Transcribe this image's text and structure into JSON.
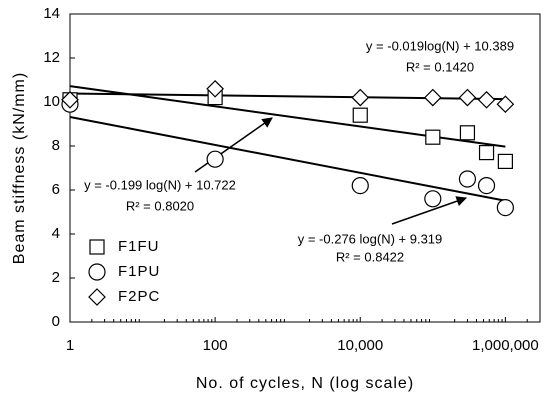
{
  "chart_data": {
    "type": "scatter",
    "xlabel": "No. of cycles, N (log scale)",
    "ylabel": "Beam stiffness (kN/mm)",
    "xscale": "log",
    "xlim": [
      1,
      3000000
    ],
    "ylim": [
      0,
      14
    ],
    "xticks": [
      1,
      100,
      {
        "value": 10000,
        "label": "10,000"
      },
      {
        "value": 1000000,
        "label": "1,000,000"
      }
    ],
    "yticks": [
      0,
      2,
      4,
      6,
      8,
      10,
      12,
      14
    ],
    "legend": "lower left",
    "series": [
      {
        "name": "F1FU",
        "marker": "square",
        "color": "#000000",
        "x": [
          1,
          100,
          10000,
          100000,
          300000,
          550000,
          1000000
        ],
        "values": [
          10.1,
          10.2,
          9.4,
          8.4,
          8.6,
          7.7,
          7.3
        ]
      },
      {
        "name": "F1PU",
        "marker": "circle",
        "color": "#000000",
        "x": [
          1,
          100,
          10000,
          100000,
          300000,
          550000,
          1000000
        ],
        "values": [
          9.9,
          7.4,
          6.2,
          5.6,
          6.5,
          6.2,
          5.2
        ]
      },
      {
        "name": "F2PC",
        "marker": "diamond",
        "color": "#000000",
        "x": [
          1,
          100,
          10000,
          100000,
          300000,
          550000,
          1000000
        ],
        "values": [
          10.1,
          10.6,
          10.2,
          10.2,
          10.2,
          10.1,
          9.9
        ]
      }
    ],
    "trendlines": [
      {
        "x": [
          1,
          1000000
        ],
        "values": [
          10.389,
          10.13
        ]
      },
      {
        "x": [
          1,
          1000000
        ],
        "values": [
          10.722,
          7.97
        ]
      },
      {
        "x": [
          1,
          1000000
        ],
        "values": [
          9.319,
          5.51
        ]
      }
    ],
    "annotations": [
      {
        "equation": "y = -0.019log(N) + 10.389",
        "r2": "R² = 0.1420"
      },
      {
        "equation": "y = -0.199 log(N) + 10.722",
        "r2": "R² = 0.8020"
      },
      {
        "equation": "y = -0.276 log(N) + 9.319",
        "r2": "R² = 0.8422"
      }
    ]
  }
}
